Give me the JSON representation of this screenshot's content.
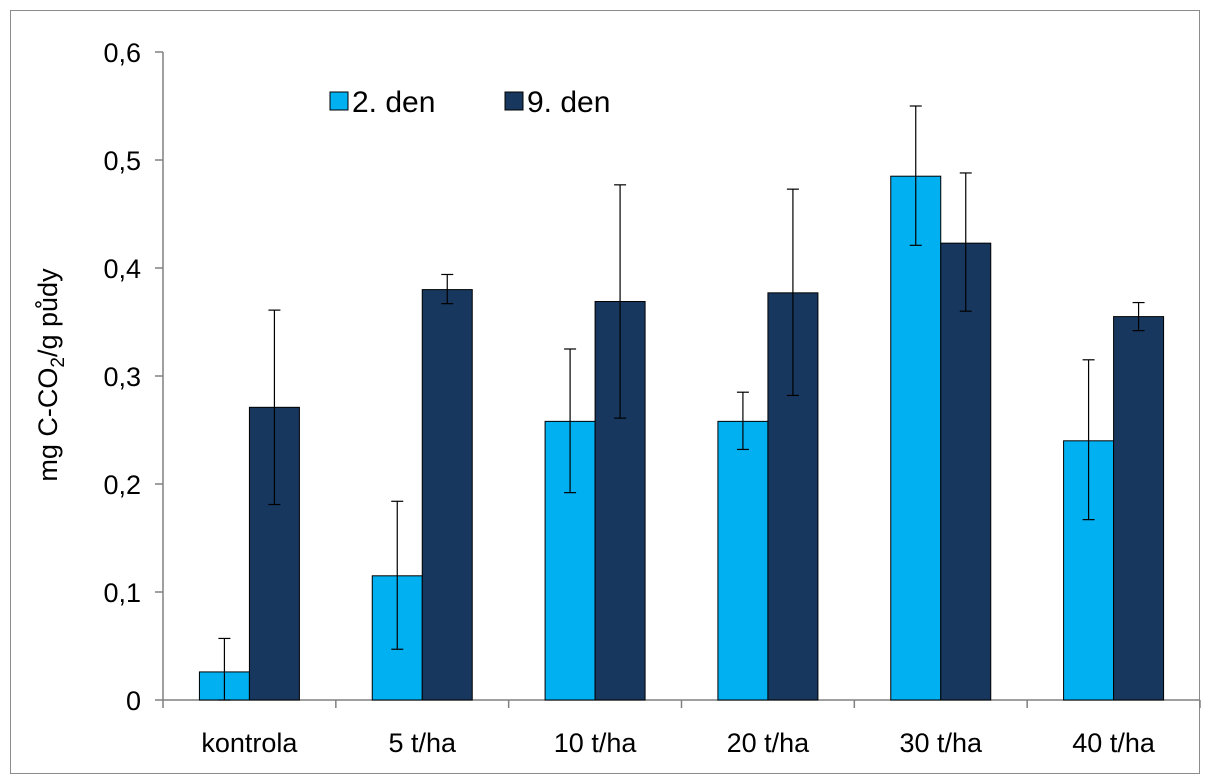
{
  "chart_data": {
    "type": "bar",
    "categories": [
      "kontrola",
      "5 t/ha",
      "10 t/ha",
      "20 t/ha",
      "30 t/ha",
      "40 t/ha"
    ],
    "series": [
      {
        "name": "2. den",
        "color": "#00b0f0",
        "values": [
          0.026,
          0.115,
          0.258,
          0.258,
          0.485,
          0.24
        ],
        "error_low": [
          0.0,
          0.047,
          0.192,
          0.232,
          0.421,
          0.167
        ],
        "error_high": [
          0.057,
          0.184,
          0.325,
          0.285,
          0.55,
          0.315
        ]
      },
      {
        "name": "9. den",
        "color": "#17375e",
        "values": [
          0.271,
          0.38,
          0.369,
          0.377,
          0.423,
          0.355
        ],
        "error_low": [
          0.181,
          0.367,
          0.261,
          0.282,
          0.36,
          0.342
        ],
        "error_high": [
          0.361,
          0.394,
          0.477,
          0.473,
          0.488,
          0.368
        ]
      }
    ],
    "ylim": [
      0,
      0.6
    ],
    "yticks": [
      "0",
      "0,1",
      "0,2",
      "0,3",
      "0,4",
      "0,5",
      "0,6"
    ],
    "ylabel_main": "mg C-CO",
    "ylabel_sub": "2",
    "ylabel_rest": "/g půdy",
    "xlabel": "",
    "legend_position": "top-left",
    "grid": false
  }
}
